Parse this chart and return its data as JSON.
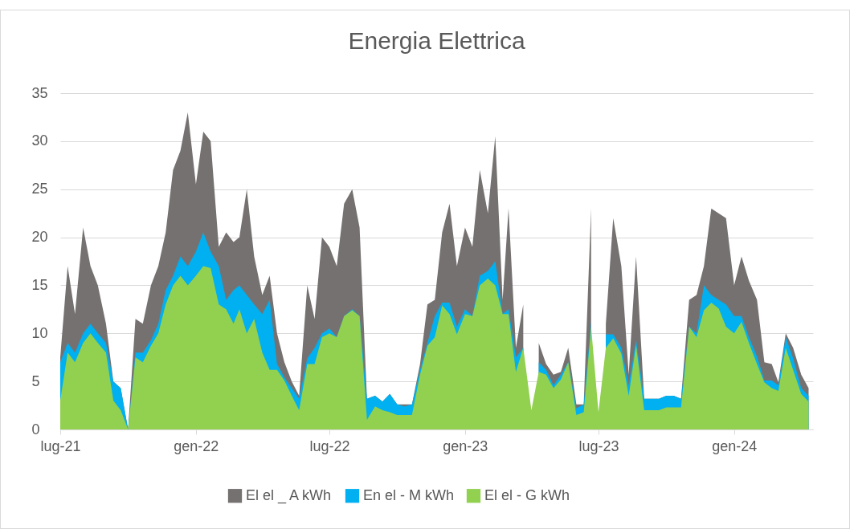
{
  "chart_data": {
    "type": "area",
    "title": "Energia Elettrica",
    "x": [
      "2021-07-01",
      "2021-07-11",
      "2021-07-21",
      "2021-08-01",
      "2021-08-11",
      "2021-08-21",
      "2021-09-01",
      "2021-09-11",
      "2021-09-21",
      "2021-10-01",
      "2021-10-11",
      "2021-10-21",
      "2021-11-01",
      "2021-11-11",
      "2021-11-21",
      "2021-12-01",
      "2021-12-11",
      "2021-12-21",
      "2022-01-01",
      "2022-01-11",
      "2022-01-21",
      "2022-02-01",
      "2022-02-11",
      "2022-02-21",
      "2022-03-01",
      "2022-03-11",
      "2022-03-21",
      "2022-04-01",
      "2022-04-11",
      "2022-04-21",
      "2022-05-01",
      "2022-05-11",
      "2022-05-21",
      "2022-06-01",
      "2022-06-11",
      "2022-06-21",
      "2022-07-01",
      "2022-07-11",
      "2022-07-21",
      "2022-08-01",
      "2022-08-11",
      "2022-08-21",
      "2022-09-01",
      "2022-09-11",
      "2022-09-21",
      "2022-10-01",
      "2022-10-11",
      "2022-10-21",
      "2022-11-01",
      "2022-11-11",
      "2022-11-21",
      "2022-12-01",
      "2022-12-11",
      "2022-12-21",
      "2023-01-01",
      "2023-01-11",
      "2023-01-21",
      "2023-02-01",
      "2023-02-11",
      "2023-02-21",
      "2023-03-01",
      "2023-03-11",
      "2023-03-21",
      "2023-04-01",
      "2023-04-11",
      "2023-04-21",
      "2023-05-01",
      "2023-05-11",
      "2023-05-21",
      "2023-06-01",
      "2023-06-11",
      "2023-06-21",
      "2023-07-01",
      "2023-07-11",
      "2023-07-21",
      "2023-08-01",
      "2023-08-11",
      "2023-08-21",
      "2023-09-01",
      "2023-09-11",
      "2023-09-21",
      "2023-10-01",
      "2023-10-11",
      "2023-10-21",
      "2023-11-01",
      "2023-11-11",
      "2023-11-21",
      "2023-12-01",
      "2023-12-11",
      "2023-12-21",
      "2024-01-01",
      "2024-01-11",
      "2024-01-21",
      "2024-02-01",
      "2024-02-11",
      "2024-02-21",
      "2024-03-01",
      "2024-03-11",
      "2024-03-21",
      "2024-04-01",
      "2024-04-11"
    ],
    "series": [
      {
        "name": "El el _ A kWh",
        "color": "#767171",
        "values": [
          7.5,
          17,
          12,
          21,
          17,
          15,
          11,
          5,
          4.3,
          0,
          11.5,
          11,
          15,
          17,
          20.5,
          27,
          29,
          33,
          25.5,
          31,
          30,
          19,
          20.5,
          19.5,
          20,
          25,
          18,
          14,
          16,
          10,
          7,
          5,
          3.5,
          15,
          11.5,
          20,
          19,
          17,
          23.5,
          25,
          21,
          3.2,
          3.5,
          2.9,
          3.7,
          2.6,
          2.6,
          2.6,
          6.8,
          13,
          13.5,
          20.5,
          23.5,
          17,
          21,
          19,
          27,
          22.5,
          30.5,
          13.5,
          23,
          8.5,
          13,
          null,
          9,
          6.8,
          5.7,
          6,
          8.5,
          2.6,
          2.6,
          23,
          null,
          11,
          22,
          17,
          5.7,
          18,
          3.2,
          3.2,
          3.2,
          3.5,
          3.5,
          3.2,
          13.5,
          14,
          17,
          23,
          22.5,
          22,
          15,
          18,
          15.5,
          13.5,
          7,
          6.8,
          4.9,
          10,
          8.5,
          5.7,
          4.3
        ]
      },
      {
        "name": "En el - M kWh",
        "color": "#00b0f0",
        "values": [
          7,
          9,
          8,
          10,
          11,
          10,
          9,
          5,
          4.3,
          0,
          8,
          8,
          9.3,
          11,
          14.5,
          16,
          18,
          17,
          18.5,
          20.5,
          18.5,
          17,
          13.5,
          14.5,
          15,
          14,
          13,
          12,
          13.5,
          6.8,
          5.4,
          4.3,
          3.2,
          7.4,
          8.5,
          10,
          10.5,
          9.6,
          11.8,
          12.5,
          11.8,
          3.2,
          3.5,
          2.9,
          3.7,
          2.6,
          2.4,
          2.6,
          6.2,
          9,
          11.8,
          13.2,
          13.2,
          10.7,
          12.5,
          11.8,
          16,
          16.5,
          17.5,
          12,
          12.5,
          7.5,
          8.5,
          null,
          7,
          6.2,
          4.6,
          5.7,
          7,
          2.2,
          2.6,
          11.2,
          null,
          9.9,
          9.9,
          8.5,
          4.6,
          9.3,
          3.2,
          3.2,
          3.2,
          3.5,
          3.5,
          3.2,
          10.7,
          10,
          15,
          14,
          13.5,
          13,
          11.8,
          11.8,
          9.6,
          7.6,
          5.1,
          5.1,
          4.6,
          9.6,
          7.4,
          4.3,
          3.5
        ]
      },
      {
        "name": "El el - G kWh",
        "color": "#92d050",
        "values": [
          3,
          8,
          7,
          9,
          10,
          9,
          8,
          3,
          2,
          0,
          7.5,
          7,
          8.7,
          10,
          13,
          15,
          16,
          15,
          16,
          17,
          16.8,
          13,
          12.5,
          11,
          12.5,
          10,
          11.5,
          8,
          6.2,
          6.2,
          5.1,
          3.5,
          2,
          6.8,
          6.8,
          9.6,
          10,
          9.6,
          11.8,
          12.4,
          11.8,
          1,
          2.4,
          2,
          1.8,
          1.5,
          1.5,
          1.5,
          5.7,
          8.7,
          9.6,
          12.9,
          12,
          9.9,
          12,
          11.8,
          15,
          15.7,
          15,
          12,
          12,
          6,
          8.5,
          2,
          6,
          5.7,
          4.3,
          5.2,
          7,
          1.5,
          1.8,
          10.7,
          1.8,
          8.5,
          9.5,
          7.9,
          3.5,
          8.8,
          2,
          2,
          2,
          2.3,
          2.3,
          2.3,
          10.7,
          9.6,
          12.4,
          13.2,
          12.6,
          10.7,
          10,
          11.2,
          9,
          6.8,
          4.9,
          4.3,
          4,
          8.5,
          6.2,
          3.7,
          2.9
        ]
      }
    ],
    "xlim": [
      "2021-07-01",
      "2024-04-17"
    ],
    "xticks": [
      {
        "value": "2021-07-01",
        "label": "lug-21"
      },
      {
        "value": "2022-01-01",
        "label": "gen-22"
      },
      {
        "value": "2022-07-01",
        "label": "lug-22"
      },
      {
        "value": "2023-01-01",
        "label": "gen-23"
      },
      {
        "value": "2023-07-01",
        "label": "lug-23"
      },
      {
        "value": "2024-01-01",
        "label": "gen-24"
      }
    ],
    "ylim": [
      0,
      35
    ],
    "yticks": [
      0,
      5,
      10,
      15,
      20,
      25,
      30,
      35
    ],
    "grid": "y",
    "legend": "bottom"
  }
}
